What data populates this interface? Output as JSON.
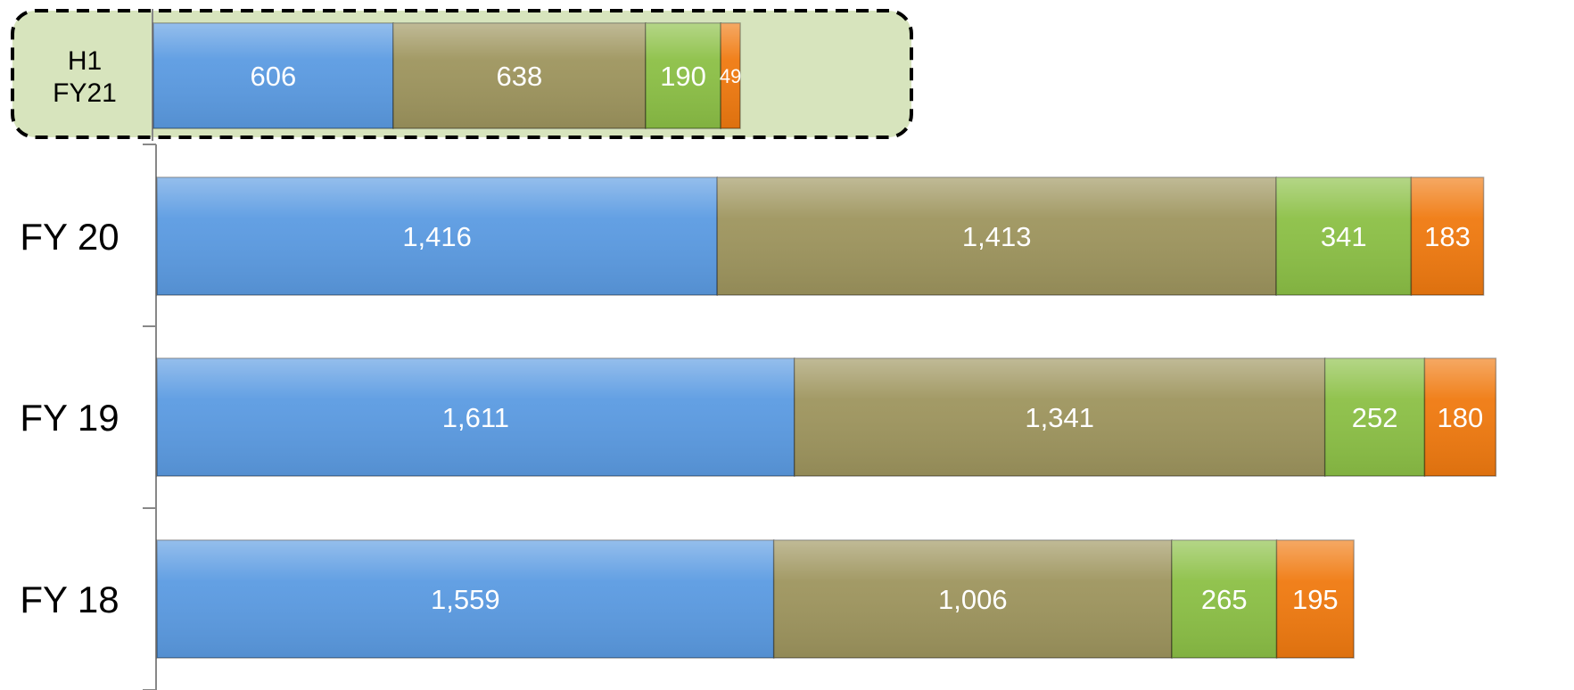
{
  "chart_data": {
    "type": "bar",
    "orientation": "horizontal",
    "stacked": true,
    "title": "",
    "xlabel": "",
    "ylabel": "",
    "grid": false,
    "legend": "none",
    "xlim": [
      0,
      3550
    ],
    "categories": [
      "H1\nFY21",
      "FY 20",
      "FY 19",
      "FY 18"
    ],
    "series": [
      {
        "color": "#5b9be2",
        "values": [
          606,
          1416,
          1611,
          1559
        ],
        "labels": [
          "606",
          "1,416",
          "1,611",
          "1,559"
        ]
      },
      {
        "color": "#9e955e",
        "values": [
          638,
          1413,
          1341,
          1006
        ],
        "labels": [
          "638",
          "1,413",
          "1,341",
          "1,006"
        ]
      },
      {
        "color": "#8cc046",
        "values": [
          190,
          341,
          252,
          265
        ],
        "labels": [
          "190",
          "341",
          "252",
          "265"
        ]
      },
      {
        "color": "#f07a10",
        "values": [
          49,
          183,
          180,
          195
        ],
        "labels": [
          "49",
          "183",
          "180",
          "195"
        ]
      }
    ],
    "highlight": {
      "category": "H1\nFY21",
      "fill": "#d7e4bd",
      "border": "dashed"
    }
  }
}
